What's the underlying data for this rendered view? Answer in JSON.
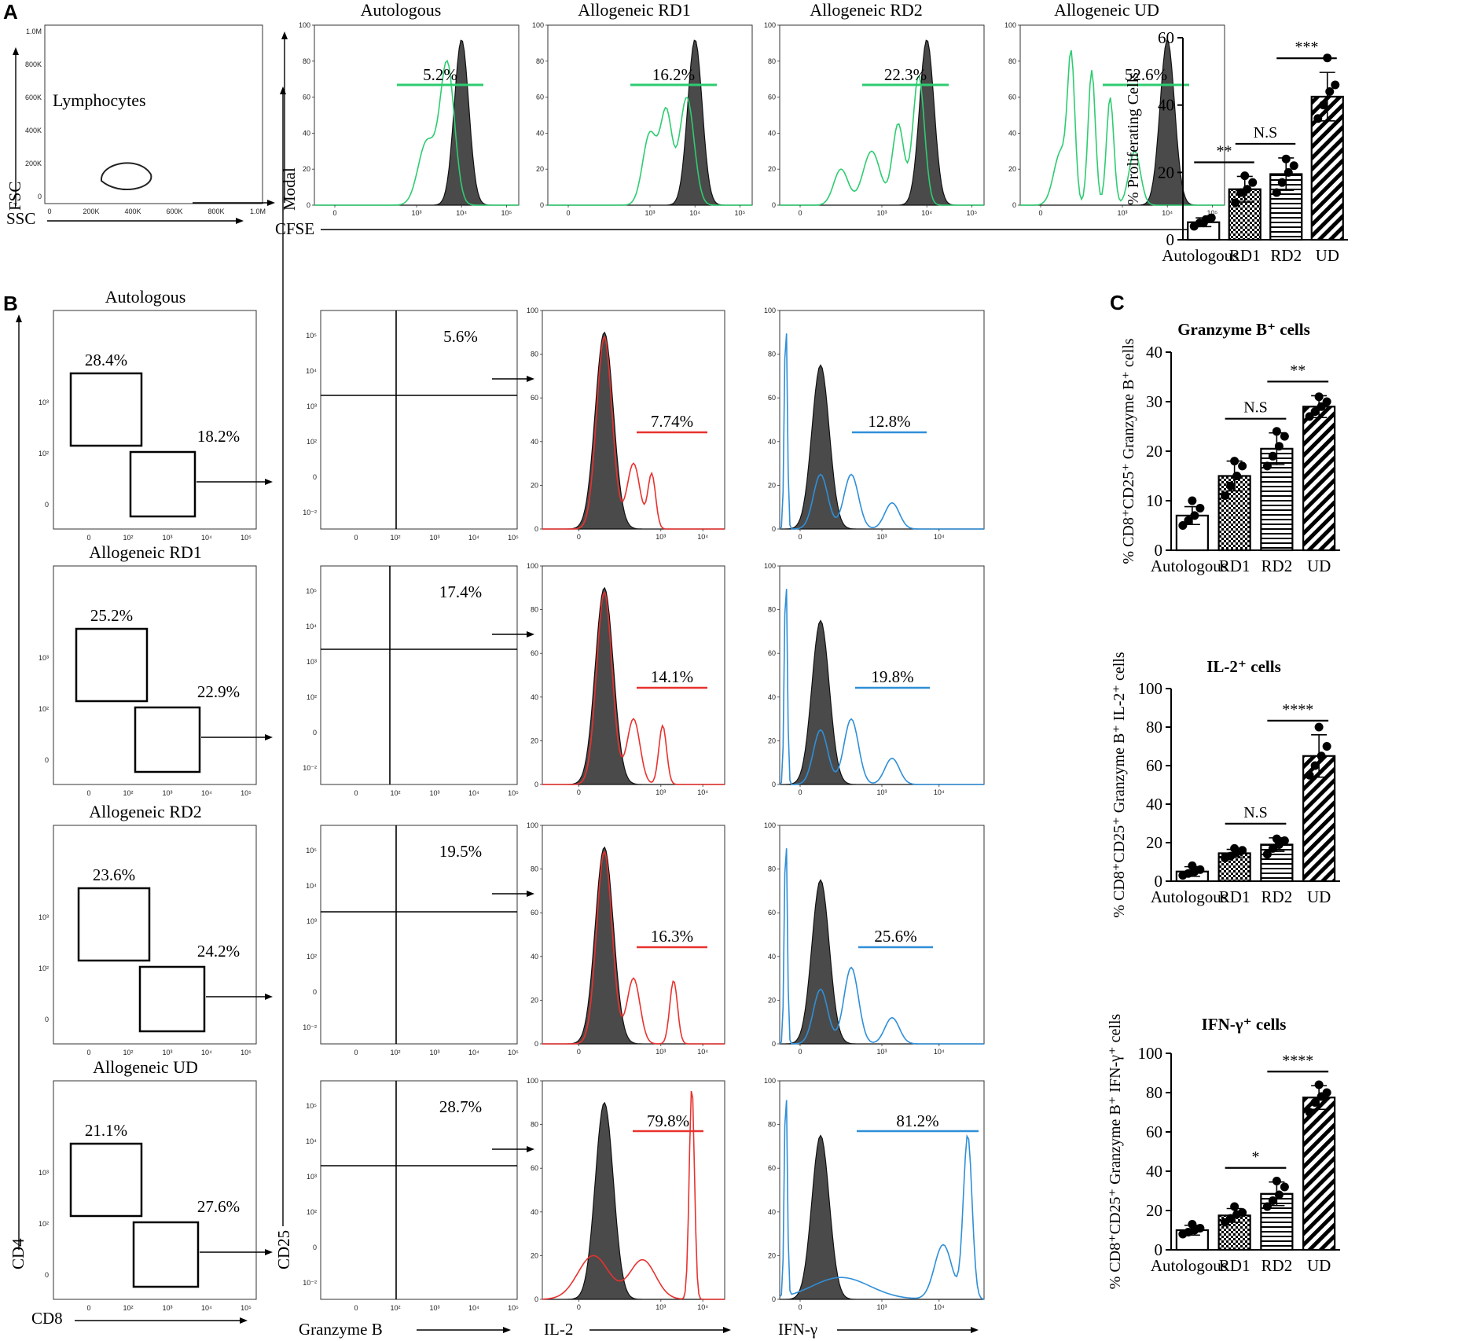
{
  "panel_labels": {
    "a": "A",
    "b": "B",
    "c": "C"
  },
  "colors": {
    "cfse": "#2ecc71",
    "il2": "#e8322f",
    "ifng": "#2f8fd8",
    "control_fill": "#4a4a4a",
    "points": "#000000"
  },
  "panelA": {
    "scatter": {
      "gate_label": "Lymphocytes",
      "xlabel": "SSC",
      "ylabel": "FSC",
      "xticks": [
        "0",
        "200K",
        "400K",
        "600K",
        "800K",
        "1.0M"
      ],
      "yticks": [
        "0",
        "200K",
        "400K",
        "600K",
        "800K",
        "1.0M"
      ]
    },
    "hist_ylabel": "Modal",
    "hist_xlabel": "CFSE",
    "hist_yticks": [
      "0",
      "20",
      "40",
      "60",
      "80",
      "100"
    ],
    "hist_xticks": [
      "0",
      "10³",
      "10⁴",
      "10⁵"
    ],
    "histograms": [
      {
        "title": "Autologous",
        "pct": "5.2%"
      },
      {
        "title": "Allogeneic RD1",
        "pct": "16.2%"
      },
      {
        "title": "Allogeneic  RD2",
        "pct": "22.3%"
      },
      {
        "title": "Allogeneic UD",
        "pct": "52.6%"
      }
    ]
  },
  "panelB": {
    "rows": [
      {
        "title": "Autologous",
        "cd4": "28.4%",
        "cd8": "18.2%",
        "cd25": "5.6%",
        "il2": "7.74%",
        "ifng": "12.8%"
      },
      {
        "title": "Allogeneic RD1",
        "cd4": "25.2%",
        "cd8": "22.9%",
        "cd25": "17.4%",
        "il2": "14.1%",
        "ifng": "19.8%"
      },
      {
        "title": "Allogeneic  RD2",
        "cd4": "23.6%",
        "cd8": "24.2%",
        "cd25": "19.5%",
        "il2": "16.3%",
        "ifng": "25.6%"
      },
      {
        "title": "Allogeneic UD",
        "cd4": "21.1%",
        "cd8": "27.6%",
        "cd25": "28.7%",
        "il2": "79.8%",
        "ifng": "81.2%"
      }
    ],
    "axis_labels": {
      "cd4": "CD4",
      "cd8": "CD8",
      "cd25": "CD25",
      "granzyme": "Granzyme B",
      "il2": "IL-2",
      "ifng": "IFN-γ"
    },
    "log_ticks": [
      "10⁻²",
      "0",
      "10²",
      "10³",
      "10⁴",
      "10⁵"
    ],
    "hist_yticks": [
      "0",
      "20",
      "40",
      "60",
      "80",
      "100"
    ]
  },
  "chart_data": [
    {
      "type": "bar",
      "title": "",
      "ylabel": "% Proliferating Cells",
      "categories": [
        "Autologous",
        "RD1",
        "RD2",
        "UD"
      ],
      "values": [
        5.2,
        15.0,
        19.5,
        42.5
      ],
      "errors": [
        1.3,
        3.8,
        4.8,
        7.2
      ],
      "points": [
        [
          4,
          5,
          6,
          6.5,
          5
        ],
        [
          11,
          14,
          15,
          17,
          19
        ],
        [
          14,
          17,
          20,
          22,
          24
        ],
        [
          36,
          40,
          44,
          46,
          54
        ]
      ],
      "ylim": [
        0,
        60
      ],
      "yticks": [
        0,
        20,
        40,
        60
      ],
      "significance": [
        {
          "from": 0,
          "to": 1,
          "label": "**"
        },
        {
          "from": 1,
          "to": 2,
          "label": "N.S"
        },
        {
          "from": 2,
          "to": 3,
          "label": "***"
        }
      ]
    },
    {
      "type": "bar",
      "title": "Granzyme B⁺ cells",
      "ylabel": "% CD8⁺CD25⁺ Granzyme B⁺ cells",
      "categories": [
        "Autologous",
        "RD1",
        "RD2",
        "UD"
      ],
      "values": [
        7.0,
        15.0,
        20.5,
        29.0
      ],
      "errors": [
        1.8,
        3.0,
        3.2,
        2.2
      ],
      "points": [
        [
          5,
          6,
          7,
          8.5,
          10
        ],
        [
          11,
          13,
          15,
          17,
          18
        ],
        [
          17,
          19,
          21,
          23,
          24
        ],
        [
          27,
          28,
          29,
          30,
          31
        ]
      ],
      "ylim": [
        0,
        40
      ],
      "yticks": [
        0,
        10,
        20,
        30,
        40
      ],
      "significance": [
        {
          "from": 1,
          "to": 2,
          "label": "N.S"
        },
        {
          "from": 2,
          "to": 3,
          "label": "**"
        }
      ]
    },
    {
      "type": "bar",
      "title": "IL-2⁺ cells",
      "ylabel": "% CD8⁺CD25⁺ Granzyme B⁺ IL-2⁺ cells",
      "categories": [
        "Autologous",
        "RD1",
        "RD2",
        "UD"
      ],
      "values": [
        5.0,
        14.5,
        19.0,
        65.0
      ],
      "errors": [
        2.5,
        2.0,
        3.5,
        11.0
      ],
      "points": [
        [
          3,
          4,
          5,
          6,
          8
        ],
        [
          12,
          13,
          15,
          16,
          17
        ],
        [
          14,
          17,
          19,
          21,
          22
        ],
        [
          55,
          60,
          65,
          70,
          80
        ]
      ],
      "ylim": [
        0,
        100
      ],
      "yticks": [
        0,
        20,
        40,
        60,
        80,
        100
      ],
      "significance": [
        {
          "from": 1,
          "to": 2,
          "label": "N.S"
        },
        {
          "from": 2,
          "to": 3,
          "label": "****"
        }
      ]
    },
    {
      "type": "bar",
      "title": "IFN-γ⁺ cells",
      "ylabel": "% CD8⁺CD25⁺ Granzyme B⁺ IFN-γ⁺ cells",
      "categories": [
        "Autologous",
        "RD1",
        "RD2",
        "UD"
      ],
      "values": [
        10.0,
        17.5,
        28.5,
        77.5
      ],
      "errors": [
        2.5,
        3.5,
        6.0,
        6.0
      ],
      "points": [
        [
          8,
          9,
          10,
          11,
          13
        ],
        [
          14,
          16,
          18,
          19,
          22
        ],
        [
          22,
          25,
          28,
          32,
          35
        ],
        [
          70,
          75,
          78,
          80,
          84
        ]
      ],
      "ylim": [
        0,
        100
      ],
      "yticks": [
        0,
        20,
        40,
        60,
        80,
        100
      ],
      "significance": [
        {
          "from": 1,
          "to": 2,
          "label": "*"
        },
        {
          "from": 2,
          "to": 3,
          "label": "****"
        }
      ]
    }
  ]
}
